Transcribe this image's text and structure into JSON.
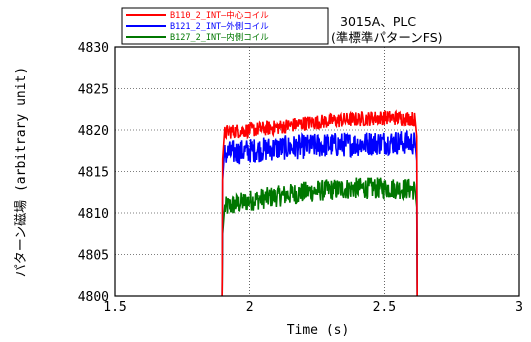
{
  "chart_data": {
    "type": "line",
    "title": "",
    "xlabel": "Time (s)",
    "ylabel": "パターン磁場 (arbitrary unit)",
    "xlim": [
      1.5,
      3
    ],
    "ylim": [
      4800,
      4830
    ],
    "x_ticks": [
      "1.5",
      "2",
      "2.5",
      "3"
    ],
    "y_ticks": [
      "4800",
      "4805",
      "4810",
      "4815",
      "4820",
      "4825",
      "4830"
    ],
    "annotation": [
      "3015A、PLC",
      "(準標準パターンFS)"
    ],
    "legend_position": "top-left",
    "grid": true,
    "pulse_start": 1.9,
    "pulse_end": 2.62,
    "series": [
      {
        "name": "B110_2_INT—中心コイル",
        "color": "#ff0000",
        "x": [
          1.9,
          1.92,
          2.0,
          2.1,
          2.2,
          2.3,
          2.4,
          2.5,
          2.6,
          2.62
        ],
        "y": [
          4819.5,
          4819.8,
          4820.0,
          4820.3,
          4820.8,
          4821.1,
          4821.3,
          4821.5,
          4821.4,
          4821.2
        ],
        "noise": 0.9
      },
      {
        "name": "B121_2_INT—外側コイル",
        "color": "#0000ff",
        "x": [
          1.9,
          1.92,
          2.0,
          2.1,
          2.2,
          2.3,
          2.4,
          2.5,
          2.6,
          2.62
        ],
        "y": [
          4817.0,
          4817.2,
          4817.5,
          4817.8,
          4818.0,
          4818.2,
          4818.3,
          4818.5,
          4818.5,
          4818.3
        ],
        "noise": 1.5
      },
      {
        "name": "B127_2_INT—内側コイル",
        "color": "#007700",
        "x": [
          1.9,
          1.92,
          2.0,
          2.1,
          2.2,
          2.3,
          2.4,
          2.5,
          2.6,
          2.62
        ],
        "y": [
          4810.5,
          4810.8,
          4811.5,
          4812.0,
          4812.5,
          4812.8,
          4813.0,
          4813.0,
          4812.9,
          4812.7
        ],
        "noise": 1.3
      }
    ]
  }
}
